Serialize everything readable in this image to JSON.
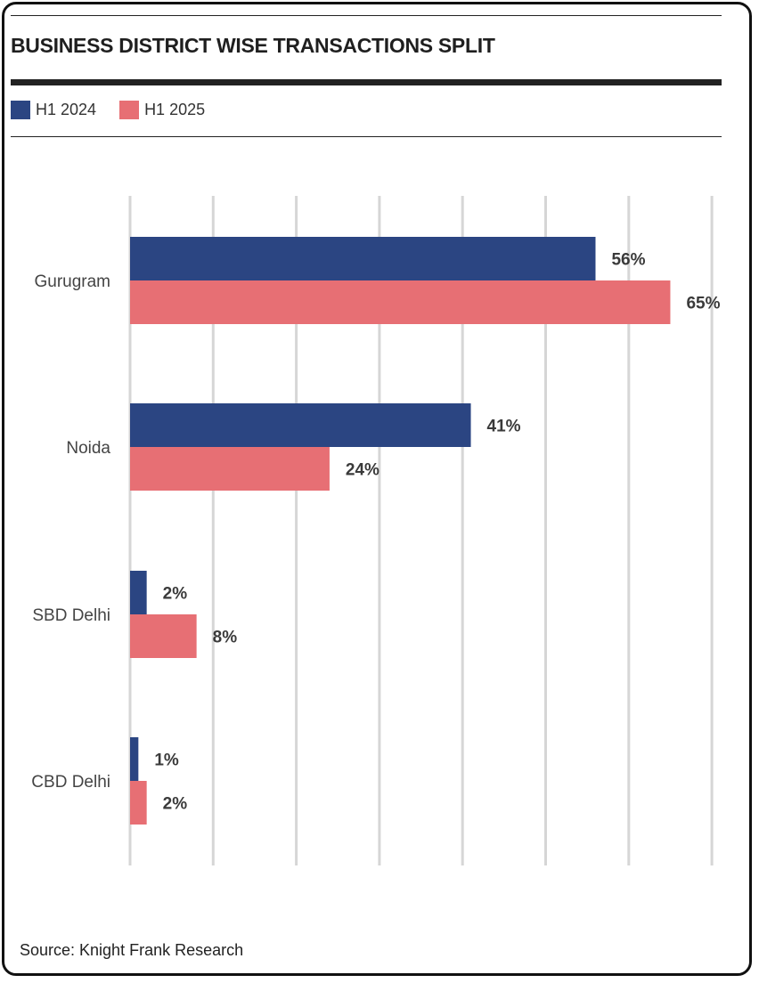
{
  "title": "BUSINESS DISTRICT WISE TRANSACTIONS SPLIT",
  "legend": [
    {
      "label": "H1 2024",
      "color": "#2b4582"
    },
    {
      "label": "H1 2025",
      "color": "#e76f74"
    }
  ],
  "chart_data": {
    "type": "bar",
    "orientation": "horizontal",
    "categories": [
      "Gurugram",
      "Noida",
      "SBD Delhi",
      "CBD Delhi"
    ],
    "series": [
      {
        "name": "H1 2024",
        "color": "#2b4582",
        "values": [
          56,
          41,
          2,
          1
        ],
        "labels": [
          "56%",
          "41%",
          "2%",
          "1%"
        ]
      },
      {
        "name": "H1 2025",
        "color": "#e76f74",
        "values": [
          65,
          24,
          8,
          2
        ],
        "labels": [
          "65%",
          "24%",
          "8%",
          "2%"
        ]
      }
    ],
    "xlim": [
      0,
      70
    ],
    "grid": true,
    "unit": "%"
  },
  "source": "Source: Knight Frank Research"
}
